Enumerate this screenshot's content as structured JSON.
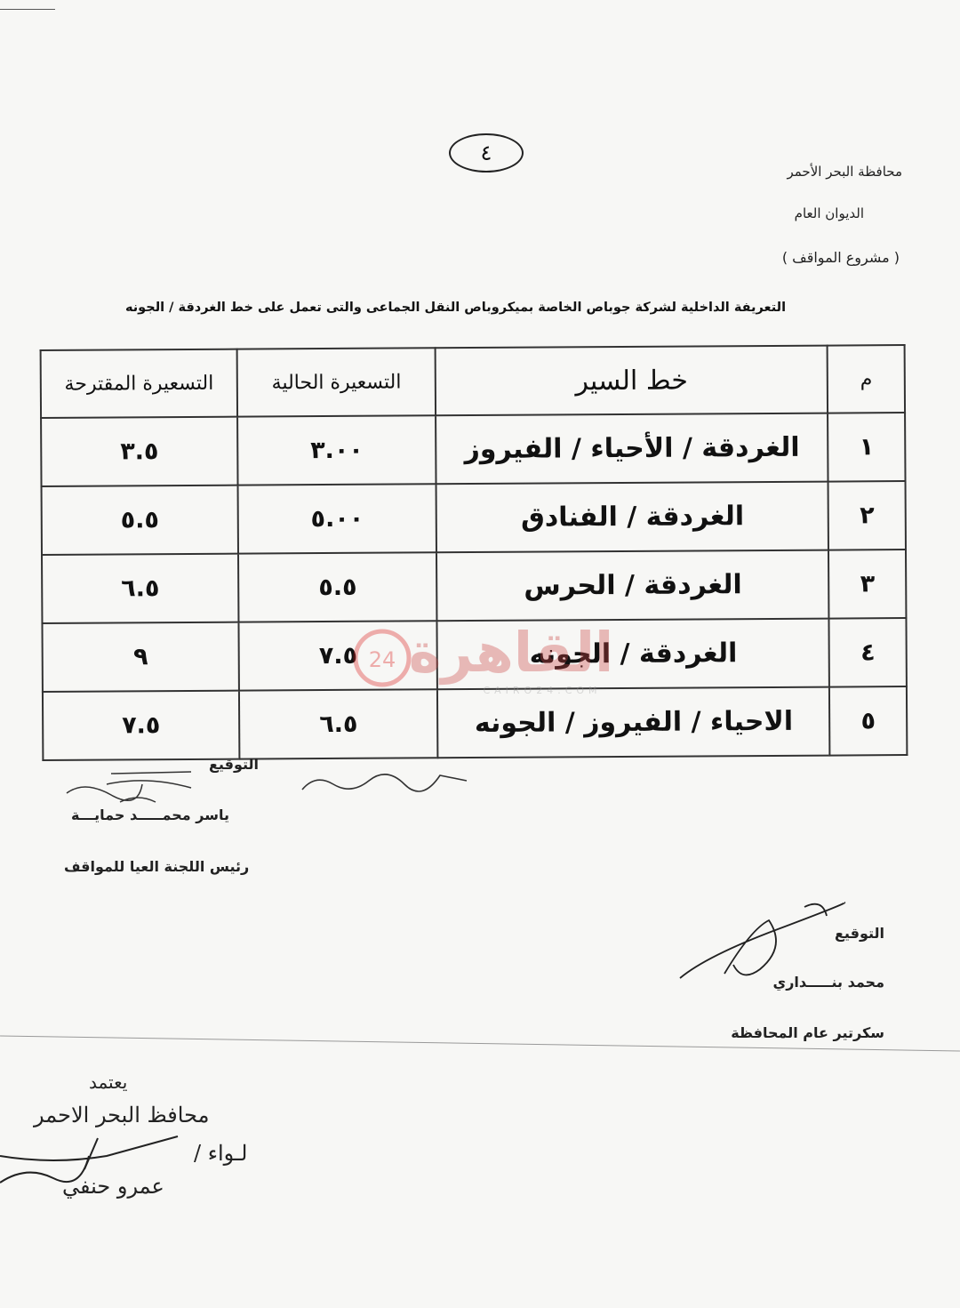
{
  "page_number": "٤",
  "header": {
    "governorate": "محافظة البحر الأحمر",
    "office": "الديوان العام",
    "project": "( مشروع المواقف )"
  },
  "title": "التعريفة الداخلية لشركة جوباص الخاصة بميكروباص النقل الجماعى والتى تعمل على خط الغردقة / الجونه",
  "table": {
    "headers": [
      "م",
      "خط السير",
      "التسعيرة الحالية",
      "التسعيرة المقترحة"
    ],
    "rows": [
      {
        "no": "١",
        "route": "الغردقة / الأحياء / الفيروز",
        "current": "٣.٠٠",
        "proposed": "٣.٥"
      },
      {
        "no": "٢",
        "route": "الغردقة / الفنادق",
        "current": "٥.٠٠",
        "proposed": "٥.٥"
      },
      {
        "no": "٣",
        "route": "الغردقة / الحرس",
        "current": "٥.٥",
        "proposed": "٦.٥"
      },
      {
        "no": "٤",
        "route": "الغردقة / الجونه",
        "current": "٧.٥",
        "proposed": "٩"
      },
      {
        "no": "٥",
        "route": "الاحياء / الفيروز / الجونه",
        "current": "٦.٥",
        "proposed": "٧.٥"
      }
    ]
  },
  "signatures": {
    "left": {
      "label": "التوقيع",
      "name": "ياسر محمـــــد حمايـــة",
      "role": "رئيس اللجنة العيا للمواقف"
    },
    "right": {
      "label": "التوقيع",
      "name": "محمد بنـــــداري",
      "role": "سكرتير عام المحافظة"
    },
    "approval": {
      "line1": "يعتمد",
      "line2": "محافظ البحر الاحمر",
      "line3": "لـواء /",
      "line4": "عمرو حنفي"
    }
  },
  "watermark": {
    "text": "القاهرة 24",
    "sub": "CAIRO24.COM",
    "color": "#d22"
  }
}
